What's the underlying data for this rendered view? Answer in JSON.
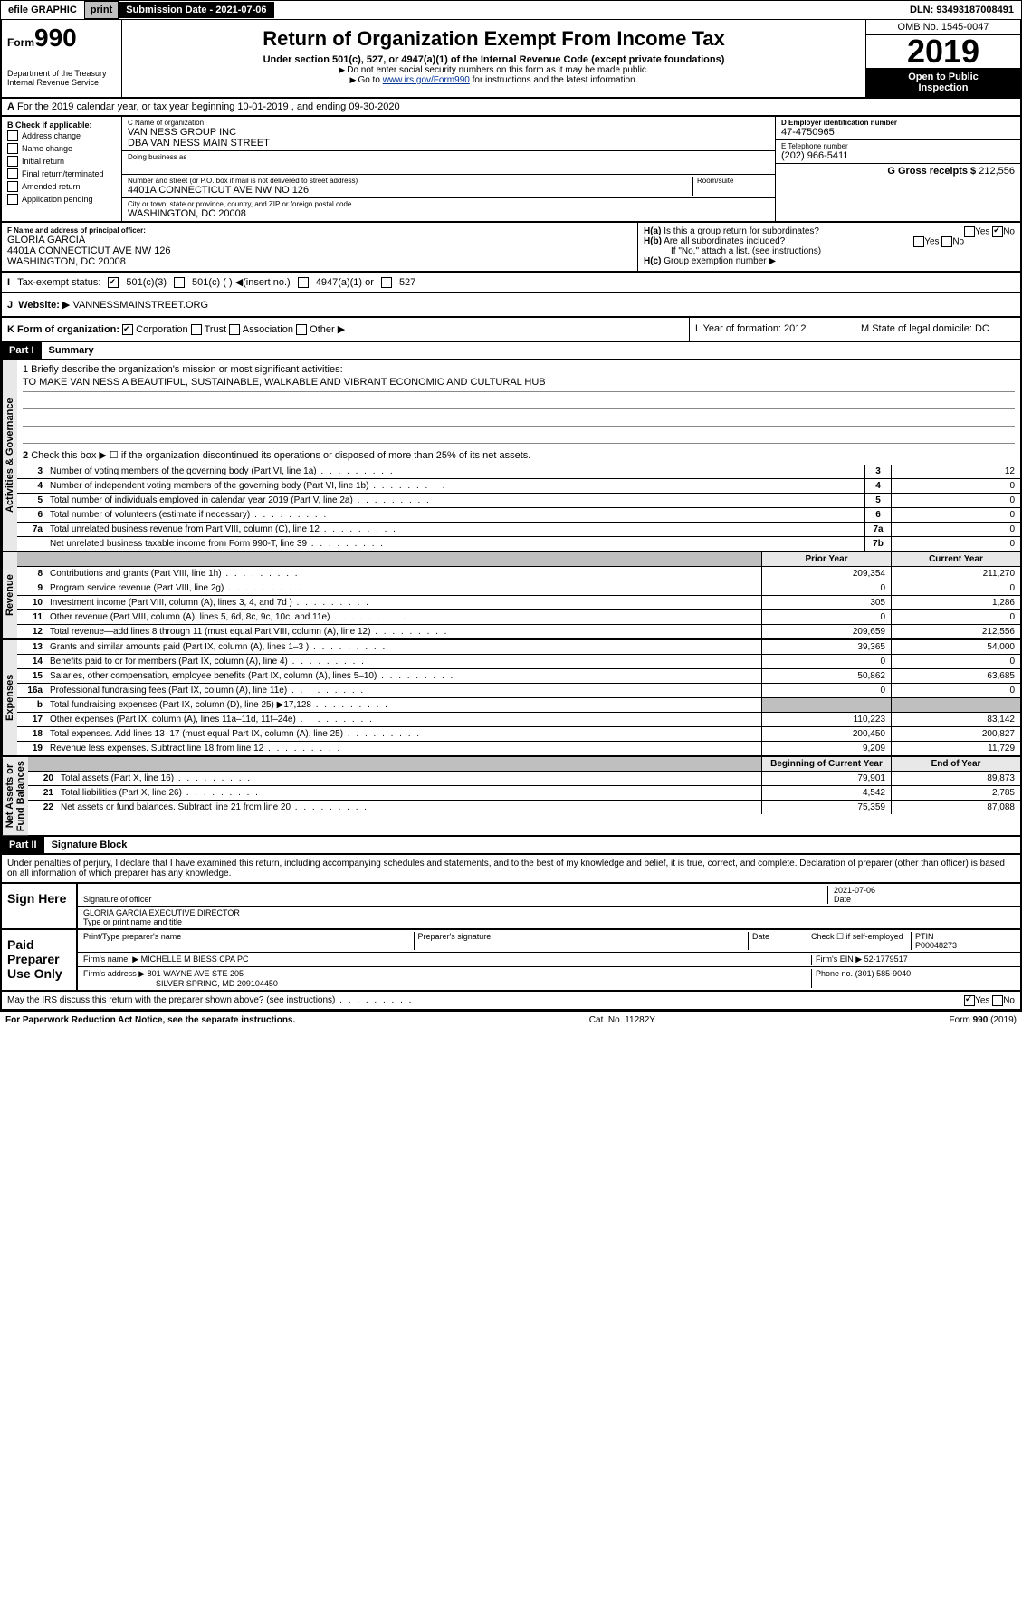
{
  "topbar": {
    "efile": "efile GRAPHIC",
    "print": "print",
    "subdate_lbl": "Submission Date - 2021-07-06",
    "dln": "DLN: 93493187008491"
  },
  "header": {
    "form": "Form",
    "num": "990",
    "dept": "Department of the Treasury\nInternal Revenue Service",
    "title": "Return of Organization Exempt From Income Tax",
    "sub": "Under section 501(c), 527, or 4947(a)(1) of the Internal Revenue Code (except private foundations)",
    "l1": "Do not enter social security numbers on this form as it may be made public.",
    "l2_pre": "Go to ",
    "l2_link": "www.irs.gov/Form990",
    "l2_post": " for instructions and the latest information.",
    "omb": "OMB No. 1545-0047",
    "year": "2019",
    "open": "Open to Public",
    "insp": "Inspection"
  },
  "A": {
    "text": "For the 2019 calendar year, or tax year beginning 10-01-2019   , and ending 09-30-2020"
  },
  "B": {
    "title": "B Check if applicable:",
    "items": [
      "Address change",
      "Name change",
      "Initial return",
      "Final return/terminated",
      "Amended return",
      "Application pending"
    ]
  },
  "C": {
    "lbl": "C Name of organization",
    "name": "VAN NESS GROUP INC",
    "dba": "DBA VAN NESS MAIN STREET",
    "dba_lbl": "Doing business as",
    "addr_lbl": "Number and street (or P.O. box if mail is not delivered to street address)",
    "room": "Room/suite",
    "addr": "4401A CONNECTICUT AVE NW NO 126",
    "city_lbl": "City or town, state or province, country, and ZIP or foreign postal code",
    "city": "WASHINGTON, DC  20008"
  },
  "D": {
    "lbl": "D Employer identification number",
    "val": "47-4750965"
  },
  "E": {
    "lbl": "E Telephone number",
    "val": "(202) 966-5411"
  },
  "G": {
    "lbl": "G Gross receipts $",
    "val": "212,556"
  },
  "F": {
    "lbl": "F  Name and address of principal officer:",
    "name": "GLORIA GARCIA",
    "addr": "4401A CONNECTICUT AVE NW 126",
    "city": "WASHINGTON, DC  20008"
  },
  "H": {
    "a": "Is this a group return for subordinates?",
    "b": "Are all subordinates included?",
    "bnote": "If \"No,\" attach a list. (see instructions)",
    "c": "Group exemption number"
  },
  "I": {
    "lbl": "Tax-exempt status:",
    "o1": "501(c)(3)",
    "o2": "501(c) (  ) ◀(insert no.)",
    "o3": "4947(a)(1) or",
    "o4": "527"
  },
  "J": {
    "lbl": "Website:",
    "val": "VANNESSMAINSTREET.ORG"
  },
  "K": {
    "lbl": "K Form of organization:",
    "c": "Corporation",
    "t": "Trust",
    "a": "Association",
    "o": "Other"
  },
  "L": {
    "lbl": "L Year of formation: 2012"
  },
  "M": {
    "lbl": "M State of legal domicile: DC"
  },
  "partI": {
    "hdr": "Part I",
    "title": "Summary",
    "q1_lbl": "1  Briefly describe the organization's mission or most significant activities:",
    "q1": "TO MAKE VAN NESS A BEAUTIFUL, SUSTAINABLE, WALKABLE AND VIBRANT ECONOMIC AND CULTURAL HUB",
    "q2": "Check this box ▶ ☐  if the organization discontinued its operations or disposed of more than 25% of its net assets.",
    "rows_gov": [
      {
        "n": "3",
        "d": "Number of voting members of the governing body (Part VI, line 1a)",
        "c": "3",
        "v": "12"
      },
      {
        "n": "4",
        "d": "Number of independent voting members of the governing body (Part VI, line 1b)",
        "c": "4",
        "v": "0"
      },
      {
        "n": "5",
        "d": "Total number of individuals employed in calendar year 2019 (Part V, line 2a)",
        "c": "5",
        "v": "0"
      },
      {
        "n": "6",
        "d": "Total number of volunteers (estimate if necessary)",
        "c": "6",
        "v": "0"
      },
      {
        "n": "7a",
        "d": "Total unrelated business revenue from Part VIII, column (C), line 12",
        "c": "7a",
        "v": "0"
      },
      {
        "n": "",
        "d": "Net unrelated business taxable income from Form 990-T, line 39",
        "c": "7b",
        "v": "0"
      }
    ],
    "col_prior": "Prior Year",
    "col_current": "Current Year",
    "rows_rev": [
      {
        "n": "8",
        "d": "Contributions and grants (Part VIII, line 1h)",
        "p": "209,354",
        "c": "211,270"
      },
      {
        "n": "9",
        "d": "Program service revenue (Part VIII, line 2g)",
        "p": "0",
        "c": "0"
      },
      {
        "n": "10",
        "d": "Investment income (Part VIII, column (A), lines 3, 4, and 7d )",
        "p": "305",
        "c": "1,286"
      },
      {
        "n": "11",
        "d": "Other revenue (Part VIII, column (A), lines 5, 6d, 8c, 9c, 10c, and 11e)",
        "p": "0",
        "c": "0"
      },
      {
        "n": "12",
        "d": "Total revenue—add lines 8 through 11 (must equal Part VIII, column (A), line 12)",
        "p": "209,659",
        "c": "212,556"
      }
    ],
    "rows_exp": [
      {
        "n": "13",
        "d": "Grants and similar amounts paid (Part IX, column (A), lines 1–3 )",
        "p": "39,365",
        "c": "54,000"
      },
      {
        "n": "14",
        "d": "Benefits paid to or for members (Part IX, column (A), line 4)",
        "p": "0",
        "c": "0"
      },
      {
        "n": "15",
        "d": "Salaries, other compensation, employee benefits (Part IX, column (A), lines 5–10)",
        "p": "50,862",
        "c": "63,685"
      },
      {
        "n": "16a",
        "d": "Professional fundraising fees (Part IX, column (A), line 11e)",
        "p": "0",
        "c": "0"
      },
      {
        "n": "b",
        "d": "Total fundraising expenses (Part IX, column (D), line 25) ▶17,128",
        "p": "",
        "c": "",
        "shade": true
      },
      {
        "n": "17",
        "d": "Other expenses (Part IX, column (A), lines 11a–11d, 11f–24e)",
        "p": "110,223",
        "c": "83,142"
      },
      {
        "n": "18",
        "d": "Total expenses. Add lines 13–17 (must equal Part IX, column (A), line 25)",
        "p": "200,450",
        "c": "200,827"
      },
      {
        "n": "19",
        "d": "Revenue less expenses. Subtract line 18 from line 12",
        "p": "9,209",
        "c": "11,729"
      }
    ],
    "col_beg": "Beginning of Current Year",
    "col_end": "End of Year",
    "rows_net": [
      {
        "n": "20",
        "d": "Total assets (Part X, line 16)",
        "p": "79,901",
        "c": "89,873"
      },
      {
        "n": "21",
        "d": "Total liabilities (Part X, line 26)",
        "p": "4,542",
        "c": "2,785"
      },
      {
        "n": "22",
        "d": "Net assets or fund balances. Subtract line 21 from line 20",
        "p": "75,359",
        "c": "87,088"
      }
    ],
    "side_gov": "Activities & Governance",
    "side_rev": "Revenue",
    "side_exp": "Expenses",
    "side_net": "Net Assets or\nFund Balances"
  },
  "partII": {
    "hdr": "Part II",
    "title": "Signature Block",
    "decl": "Under penalties of perjury, I declare that I have examined this return, including accompanying schedules and statements, and to the best of my knowledge and belief, it is true, correct, and complete. Declaration of preparer (other than officer) is based on all information of which preparer has any knowledge.",
    "sign": "Sign Here",
    "sig_lbl": "Signature of officer",
    "date": "2021-07-06",
    "date_lbl": "Date",
    "typed": "GLORIA GARCIA  EXECUTIVE DIRECTOR",
    "typed_lbl": "Type or print name and title",
    "paid": "Paid Preparer Use Only",
    "prep_name_lbl": "Print/Type preparer's name",
    "prep_sig_lbl": "Preparer's signature",
    "prep_date_lbl": "Date",
    "check_lbl": "Check ☐ if self-employed",
    "ptin_lbl": "PTIN",
    "ptin": "P00048273",
    "firm_name_lbl": "Firm's name",
    "firm_name": "MICHELLE M BIESS CPA PC",
    "firm_ein_lbl": "Firm's EIN ▶",
    "firm_ein": "52-1779517",
    "firm_addr_lbl": "Firm's address ▶",
    "firm_addr": "801 WAYNE AVE STE 205",
    "firm_city": "SILVER SPRING, MD  209104450",
    "phone_lbl": "Phone no.",
    "phone": "(301) 585-9040",
    "discuss": "May the IRS discuss this return with the preparer shown above? (see instructions)"
  },
  "footer": {
    "pra": "For Paperwork Reduction Act Notice, see the separate instructions.",
    "cat": "Cat. No. 11282Y",
    "form": "Form 990 (2019)"
  }
}
